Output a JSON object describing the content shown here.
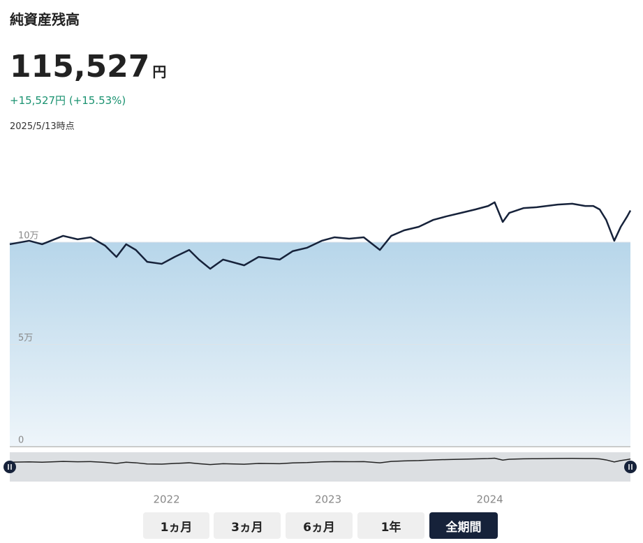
{
  "header": {
    "title": "純資産残高",
    "value": "115,527",
    "unit": "円",
    "change": "+15,527円 (+15.53%)",
    "as_of": "2025/5/13時点"
  },
  "chart": {
    "type": "line",
    "color": "#16223a",
    "x": [
      2021.03,
      2021.15,
      2021.23,
      2021.36,
      2021.45,
      2021.53,
      2021.62,
      2021.69,
      2021.75,
      2021.81,
      2021.88,
      2021.97,
      2022.05,
      2022.14,
      2022.2,
      2022.27,
      2022.35,
      2022.48,
      2022.57,
      2022.7,
      2022.78,
      2022.87,
      2022.96,
      2023.04,
      2023.13,
      2023.22,
      2023.32,
      2023.39,
      2023.47,
      2023.56,
      2023.65,
      2023.73,
      2023.82,
      2023.91,
      2023.99,
      2024.03,
      2024.08,
      2024.12,
      2024.21,
      2024.29,
      2024.42,
      2024.51,
      2024.59,
      2024.64,
      2024.68,
      2024.72,
      2024.77,
      2024.81,
      2024.85,
      2024.87
    ],
    "values": [
      99000,
      100700,
      99000,
      103100,
      101400,
      102400,
      98300,
      92800,
      99000,
      96200,
      90400,
      89400,
      92800,
      96200,
      91500,
      87000,
      91500,
      88700,
      92800,
      91500,
      95600,
      97300,
      100700,
      102400,
      101700,
      102400,
      96200,
      103100,
      105800,
      107500,
      110900,
      112600,
      114300,
      116000,
      117700,
      119500,
      109900,
      114300,
      116700,
      117100,
      118400,
      118800,
      117700,
      117700,
      116000,
      110900,
      100700,
      107500,
      112600,
      115500
    ],
    "baseline": 100000,
    "xlim": [
      2021.03,
      2024.87
    ],
    "ylim": [
      0,
      150000
    ],
    "yticks": [
      0,
      {
        "value": 50000,
        "label": "5万"
      },
      {
        "value": 100000,
        "label": "10万"
      }
    ],
    "xticks": [
      2022,
      2023,
      2024
    ],
    "grid": true
  },
  "range_buttons": [
    "1ヵ月",
    "3ヵ月",
    "6ヵ月",
    "1年",
    "全期間"
  ],
  "selected": 4
}
